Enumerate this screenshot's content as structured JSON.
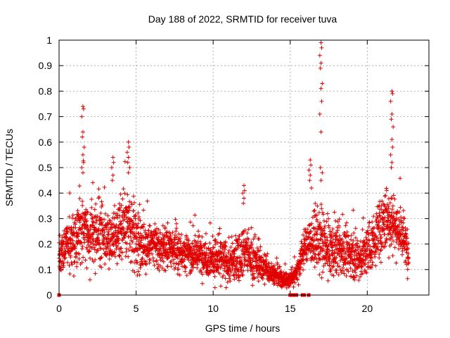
{
  "chart_data": {
    "type": "scatter",
    "title": "Day 188 of 2022, SRMTID for receiver tuva",
    "xlabel": "GPS time / hours",
    "ylabel": "SRMTID / TECUs",
    "xlim": [
      0,
      24
    ],
    "ylim": [
      0,
      1
    ],
    "xticks": [
      0,
      5,
      10,
      15,
      20
    ],
    "yticks": [
      0,
      0.1,
      0.2,
      0.3,
      0.4,
      0.5,
      0.6,
      0.7,
      0.8,
      0.9,
      1
    ],
    "grid": true,
    "marker": "+",
    "marker_color": "#e00000",
    "series": [
      {
        "name": "SRMTID",
        "shape": [
          [
            0.0,
            0.16
          ],
          [
            0.5,
            0.19
          ],
          [
            1.0,
            0.21
          ],
          [
            1.5,
            0.29
          ],
          [
            2.0,
            0.22
          ],
          [
            2.5,
            0.24
          ],
          [
            3.0,
            0.23
          ],
          [
            3.5,
            0.22
          ],
          [
            4.0,
            0.24
          ],
          [
            4.5,
            0.27
          ],
          [
            5.0,
            0.22
          ],
          [
            5.5,
            0.19
          ],
          [
            6.0,
            0.2
          ],
          [
            6.5,
            0.18
          ],
          [
            7.0,
            0.19
          ],
          [
            7.5,
            0.18
          ],
          [
            8.0,
            0.17
          ],
          [
            8.5,
            0.16
          ],
          [
            9.0,
            0.16
          ],
          [
            9.5,
            0.15
          ],
          [
            10.0,
            0.14
          ],
          [
            10.5,
            0.14
          ],
          [
            11.0,
            0.12
          ],
          [
            11.5,
            0.14
          ],
          [
            12.0,
            0.18
          ],
          [
            12.5,
            0.14
          ],
          [
            13.0,
            0.12
          ],
          [
            13.5,
            0.1
          ],
          [
            14.0,
            0.08
          ],
          [
            14.5,
            0.06
          ],
          [
            15.0,
            0.06
          ],
          [
            15.5,
            0.1
          ],
          [
            16.0,
            0.2
          ],
          [
            16.5,
            0.22
          ],
          [
            17.0,
            0.2
          ],
          [
            17.5,
            0.17
          ],
          [
            18.0,
            0.18
          ],
          [
            18.5,
            0.17
          ],
          [
            19.0,
            0.16
          ],
          [
            19.5,
            0.14
          ],
          [
            20.0,
            0.17
          ],
          [
            20.5,
            0.22
          ],
          [
            21.0,
            0.28
          ],
          [
            21.5,
            0.3
          ],
          [
            22.0,
            0.26
          ],
          [
            22.5,
            0.2
          ],
          [
            22.7,
            0.16
          ]
        ],
        "spread": [
          [
            0.0,
            0.06
          ],
          [
            1.0,
            0.1
          ],
          [
            1.5,
            0.14
          ],
          [
            3.5,
            0.1
          ],
          [
            4.5,
            0.14
          ],
          [
            6.0,
            0.08
          ],
          [
            9.0,
            0.07
          ],
          [
            12.0,
            0.09
          ],
          [
            14.0,
            0.04
          ],
          [
            15.0,
            0.03
          ],
          [
            16.5,
            0.1
          ],
          [
            17.0,
            0.12
          ],
          [
            19.0,
            0.08
          ],
          [
            21.0,
            0.11
          ],
          [
            21.5,
            0.13
          ],
          [
            22.7,
            0.07
          ]
        ],
        "samples_per_hour": 130,
        "spikes": [
          {
            "x": 1.55,
            "values": [
              0.74,
              0.73,
              0.7,
              0.64,
              0.62,
              0.58,
              0.55,
              0.52,
              0.5,
              0.48
            ]
          },
          {
            "x": 3.5,
            "values": [
              0.54,
              0.52,
              0.5,
              0.47,
              0.45
            ]
          },
          {
            "x": 4.5,
            "values": [
              0.6,
              0.58,
              0.56,
              0.54,
              0.52,
              0.5,
              0.48
            ]
          },
          {
            "x": 12.0,
            "values": [
              0.43,
              0.41,
              0.4,
              0.38,
              0.36
            ]
          },
          {
            "x": 16.3,
            "values": [
              0.53,
              0.51,
              0.49,
              0.47,
              0.45,
              0.42
            ]
          },
          {
            "x": 17.0,
            "values": [
              0.99,
              0.97,
              0.94,
              0.91,
              0.89,
              0.83,
              0.81,
              0.76,
              0.71,
              0.64,
              0.5,
              0.48,
              0.45
            ]
          },
          {
            "x": 21.6,
            "values": [
              0.8,
              0.79,
              0.76,
              0.71,
              0.69,
              0.66,
              0.61,
              0.58,
              0.55,
              0.52,
              0.5
            ]
          }
        ],
        "zero_markers": [
          0.0,
          15.0,
          15.1,
          15.2,
          15.3,
          15.4,
          15.8,
          15.9,
          16.2
        ]
      }
    ]
  }
}
